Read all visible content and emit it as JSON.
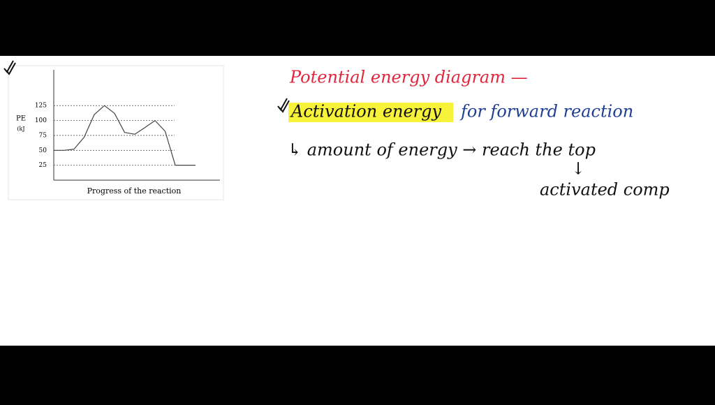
{
  "chart_data": {
    "type": "line",
    "y_label": "PE",
    "y_unit": "(kJ",
    "x_label": "Progress of the reaction",
    "categories": [
      null,
      null,
      null,
      null,
      null,
      null,
      null,
      null,
      null,
      null,
      null,
      null,
      null,
      null,
      null
    ],
    "values": [
      50,
      50,
      52,
      72,
      110,
      125,
      112,
      80,
      77,
      88,
      100,
      82,
      25,
      25,
      25
    ],
    "color": "#444444",
    "ylim": [
      0,
      185
    ],
    "yticks": [
      25,
      50,
      75,
      100,
      125
    ],
    "grid": true
  },
  "notes": {
    "title": "Potential energy diagram —",
    "highlight": "Activation energy",
    "highlight_rest": "for forward reaction",
    "line1": "↳ amount of energy → reach the top",
    "arrow": "↓",
    "line2": "activated comp"
  }
}
